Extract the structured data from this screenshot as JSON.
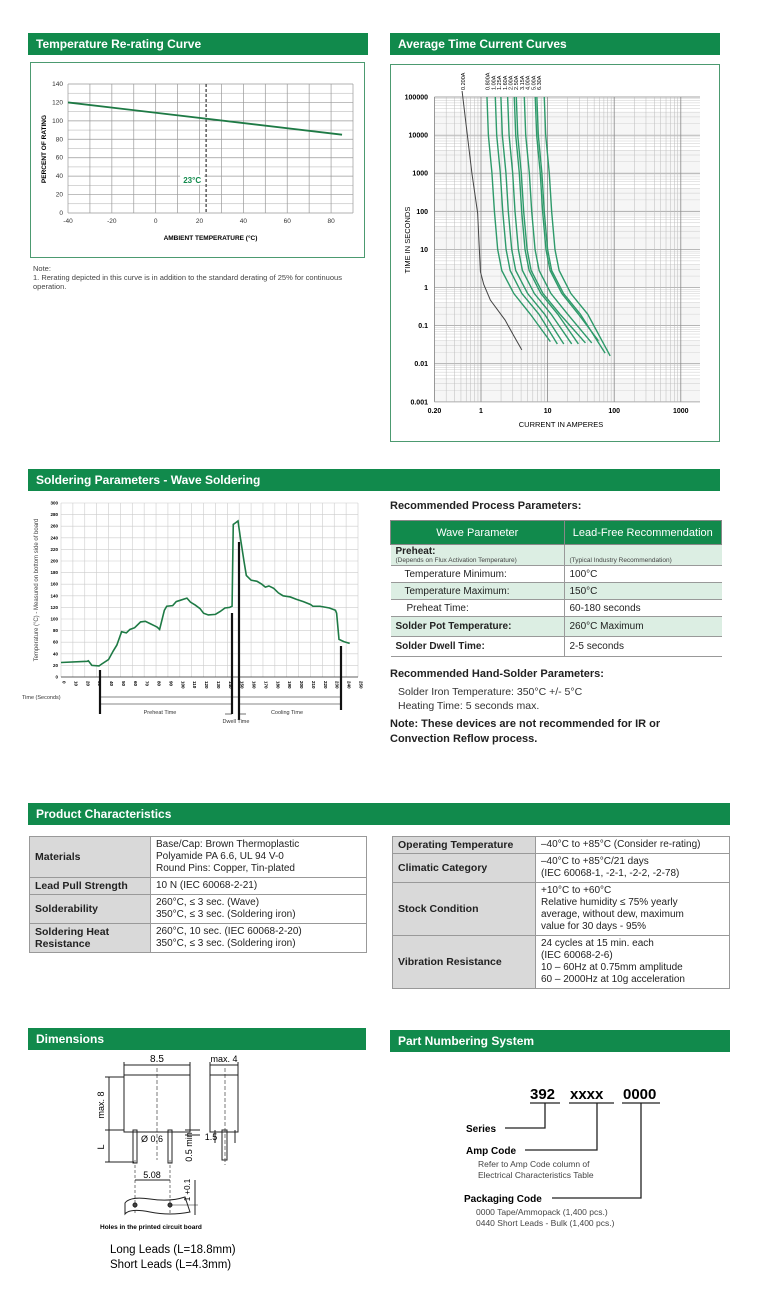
{
  "sections": {
    "rerating": "Temperature Re-rating Curve",
    "tcc": "Average Time Current Curves",
    "soldering": "Soldering Parameters - Wave Soldering",
    "product": "Product Characteristics",
    "dimensions": "Dimensions",
    "part_numbering": "Part Numbering System"
  },
  "colors": {
    "accent": "#118a4c",
    "curve": "#1e7a45",
    "tcc_curve": "#2e9a6a",
    "row_tint": "#dceee3",
    "label_cell": "#d9d9d9"
  },
  "rerating_note": {
    "title": "Note:",
    "text": "1. Rerating depicted in this curve is in addition to the standard derating of 25% for continuous operation."
  },
  "chart_data": [
    {
      "type": "line",
      "xlabel": "AMBIENT TEMPERATURE (°C)",
      "ylabel": "PERCENT OF RATING",
      "xlim": [
        -40,
        90
      ],
      "ylim": [
        0,
        140
      ],
      "xticks": [
        -40,
        -20,
        0,
        20,
        40,
        60,
        80
      ],
      "yticks": [
        0,
        20,
        40,
        60,
        80,
        100,
        120,
        140
      ],
      "grid": true,
      "x": [
        -40,
        85
      ],
      "y": [
        120,
        85
      ],
      "annotation": {
        "label": "23°C",
        "x": 23
      }
    },
    {
      "type": "line",
      "xlabel": "CURRENT IN AMPERES",
      "ylabel": "TIME IN SECONDS",
      "xscale": "log",
      "yscale": "log",
      "xlim": [
        0.2,
        2000
      ],
      "ylim": [
        0.001,
        100000
      ],
      "xticks": [
        "0.20",
        "1",
        "10",
        "100",
        "1000"
      ],
      "yticks": [
        "0.001",
        "0.01",
        "0.1",
        "1",
        "10",
        "100",
        "1000",
        "10000",
        "100000"
      ],
      "grid": true,
      "series": [
        {
          "name": "0.200A",
          "points": [
            [
              0.52,
              200000
            ],
            [
              0.73,
              1000
            ],
            [
              0.89,
              90
            ],
            [
              0.98,
              2.6
            ],
            [
              1.1,
              1.2
            ],
            [
              1.38,
              0.47
            ],
            [
              1.8,
              0.25
            ],
            [
              2.3,
              0.14
            ],
            [
              3,
              0.06
            ],
            [
              4.1,
              0.023
            ]
          ]
        },
        {
          "name": "0.800A",
          "points": [
            [
              1.23,
              100000
            ],
            [
              1.29,
              10000
            ],
            [
              1.46,
              1000
            ],
            [
              1.59,
              100
            ],
            [
              1.78,
              10
            ],
            [
              2.05,
              2.8
            ],
            [
              3.1,
              0.7
            ],
            [
              5.5,
              0.2
            ],
            [
              11,
              0.038
            ]
          ]
        },
        {
          "name": "1.00A",
          "points": [
            [
              1.64,
              100000
            ],
            [
              1.72,
              10000
            ],
            [
              1.95,
              1000
            ],
            [
              2.12,
              100
            ],
            [
              2.38,
              10
            ],
            [
              2.74,
              2.8
            ],
            [
              4.1,
              0.7
            ],
            [
              7.4,
              0.2
            ],
            [
              14,
              0.033
            ]
          ]
        },
        {
          "name": "1.25A",
          "points": [
            [
              1.99,
              100000
            ],
            [
              2.09,
              10000
            ],
            [
              2.37,
              1000
            ],
            [
              2.57,
              100
            ],
            [
              2.89,
              10
            ],
            [
              3.32,
              2.8
            ],
            [
              5.0,
              0.7
            ],
            [
              9.0,
              0.2
            ],
            [
              17.5,
              0.033
            ]
          ]
        },
        {
          "name": "1.60A",
          "points": [
            [
              2.51,
              100000
            ],
            [
              2.64,
              10000
            ],
            [
              2.99,
              1000
            ],
            [
              3.24,
              100
            ],
            [
              3.64,
              10
            ],
            [
              4.19,
              2.8
            ],
            [
              6.3,
              0.7
            ],
            [
              11.3,
              0.2
            ],
            [
              23,
              0.033
            ]
          ]
        },
        {
          "name": "2.00A",
          "points": [
            [
              3.16,
              100000
            ],
            [
              3.32,
              10000
            ],
            [
              3.76,
              1000
            ],
            [
              4.08,
              100
            ],
            [
              4.58,
              10
            ],
            [
              5.28,
              2.8
            ],
            [
              7.9,
              0.7
            ],
            [
              14.2,
              0.2
            ],
            [
              29,
              0.033
            ]
          ]
        },
        {
          "name": "2.50A",
          "points": [
            [
              3.39,
              100000
            ],
            [
              3.56,
              10000
            ],
            [
              4.03,
              1000
            ],
            [
              4.37,
              100
            ],
            [
              4.92,
              10
            ],
            [
              5.66,
              2.8
            ],
            [
              8.5,
              0.7
            ],
            [
              15.3,
              0.2
            ],
            [
              37,
              0.035
            ]
          ]
        },
        {
          "name": "3.15A",
          "points": [
            [
              4.47,
              100000
            ],
            [
              4.69,
              10000
            ],
            [
              5.32,
              1000
            ],
            [
              5.77,
              100
            ],
            [
              6.48,
              10
            ],
            [
              7.46,
              2.8
            ],
            [
              11.2,
              0.7
            ],
            [
              20,
              0.2
            ],
            [
              46,
              0.035
            ]
          ]
        },
        {
          "name": "4.00A",
          "points": [
            [
              6.52,
              100000
            ],
            [
              6.85,
              10000
            ],
            [
              7.76,
              1000
            ],
            [
              8.41,
              100
            ],
            [
              9.45,
              10
            ],
            [
              10.9,
              2.8
            ],
            [
              16.3,
              0.7
            ],
            [
              29,
              0.2
            ],
            [
              58,
              0.04
            ]
          ]
        },
        {
          "name": "5.00A",
          "points": [
            [
              6.9,
              100000
            ],
            [
              7.25,
              10000
            ],
            [
              8.21,
              1000
            ],
            [
              8.9,
              100
            ],
            [
              10,
              10
            ],
            [
              11.5,
              2.8
            ],
            [
              17.3,
              0.7
            ],
            [
              31,
              0.2
            ],
            [
              73,
              0.019
            ]
          ]
        },
        {
          "name": "6.30A",
          "points": [
            [
              8.91,
              100000
            ],
            [
              9.36,
              10000
            ],
            [
              10.6,
              1000
            ],
            [
              11.5,
              100
            ],
            [
              12.9,
              10
            ],
            [
              14.9,
              2.8
            ],
            [
              22.3,
              0.7
            ],
            [
              40,
              0.2
            ],
            [
              87,
              0.016
            ]
          ]
        }
      ]
    },
    {
      "type": "line",
      "xlabel": "Time (Seconds)",
      "ylabel": "Temperature (°C) - Measured on bottom side of board",
      "xlim": [
        0,
        250
      ],
      "ylim": [
        0,
        300
      ],
      "xticks": [
        0,
        10,
        20,
        30,
        40,
        50,
        60,
        70,
        80,
        90,
        100,
        110,
        120,
        130,
        140,
        150,
        160,
        170,
        180,
        190,
        200,
        210,
        220,
        230,
        240,
        250
      ],
      "yticks": [
        0,
        20,
        40,
        60,
        80,
        100,
        120,
        140,
        160,
        180,
        200,
        220,
        240,
        260,
        280,
        300
      ],
      "grid": true,
      "x": [
        0,
        22,
        23,
        26,
        32,
        34,
        40,
        44,
        47,
        51,
        55,
        58,
        62,
        67,
        71,
        75,
        79,
        81,
        83,
        87,
        89,
        94,
        97,
        100,
        106,
        109,
        113,
        117,
        120,
        124,
        130,
        134,
        138,
        142,
        144,
        145,
        147,
        149,
        151,
        154,
        156,
        160,
        165,
        169,
        172,
        175,
        179,
        183,
        187,
        193,
        198,
        204,
        210,
        212,
        218,
        226,
        231,
        232,
        234,
        238,
        243
      ],
      "y": [
        25,
        27,
        28,
        20,
        19,
        22,
        30,
        45,
        55,
        78,
        76,
        82,
        85,
        95,
        96,
        92,
        88,
        86,
        82,
        115,
        122,
        123,
        130,
        132,
        136,
        129,
        124,
        118,
        110,
        107,
        108,
        113,
        119,
        120,
        122,
        263,
        266,
        269,
        240,
        200,
        175,
        167,
        165,
        160,
        155,
        157,
        153,
        145,
        140,
        138,
        134,
        130,
        125,
        122,
        122,
        119,
        115,
        110,
        65,
        61,
        58
      ],
      "annotations": {
        "time_label": "Time (Seconds)",
        "preheat": "Preheat Time",
        "dwell": "Dwell Time",
        "cooling": "Cooling Time"
      }
    }
  ],
  "process": {
    "title": "Recommended Process Parameters:",
    "headers": [
      "Wave Parameter",
      "Lead-Free Recommendation"
    ],
    "preheat_label": "Preheat:",
    "preheat_sub": "(Depends on Flux Activation Temperature)",
    "preheat_rec": "(Typical Industry Recommendation)",
    "rows": [
      {
        "param": "Temperature Minimum:",
        "value": "100°C"
      },
      {
        "param": "Temperature Maximum:",
        "value": "150°C"
      },
      {
        "param": "Preheat Time:",
        "value": "60-180 seconds"
      },
      {
        "param": "Solder Pot Temperature:",
        "value": "260°C Maximum"
      },
      {
        "param": "Solder Dwell Time:",
        "value": "2-5 seconds"
      }
    ],
    "hand_title": "Recommended Hand-Solder Parameters:",
    "hand_lines": [
      "Solder Iron Temperature: 350°C +/- 5°C",
      "Heating Time: 5 seconds max."
    ],
    "note": "Note: These devices are not recommended for IR or Convection Reflow process."
  },
  "product_left": [
    {
      "label": "Materials",
      "lines": [
        "Base/Cap: Brown Thermoplastic",
        "Polyamide PA 6.6, UL 94 V-0",
        "Round Pins: Copper, Tin-plated"
      ]
    },
    {
      "label": "Lead Pull Strength",
      "lines": [
        "10 N (IEC  60068-2-21)"
      ]
    },
    {
      "label": "Solderability",
      "lines": [
        "260°C, ≤ 3 sec. (Wave)",
        "350°C, ≤ 3 sec. (Soldering iron)"
      ]
    },
    {
      "label": "Soldering Heat Resistance",
      "lines": [
        "260°C, 10 sec. (IEC  60068-2-20)",
        "350°C, ≤ 3 sec. (Soldering iron)"
      ]
    }
  ],
  "product_right": [
    {
      "label": "Operating Temperature",
      "lines": [
        "–40°C to +85°C (Consider re-rating)"
      ]
    },
    {
      "label": "Climatic Category",
      "lines": [
        "–40°C to +85°C/21 days",
        "(IEC 60068-1, -2-1, -2-2, -2-78)"
      ]
    },
    {
      "label": "Stock Condition",
      "lines": [
        "+10°C to +60°C",
        "Relative humidity ≤ 75% yearly",
        "average, without dew, maximum",
        "value for 30 days - 95%"
      ]
    },
    {
      "label": "Vibration Resistance",
      "lines": [
        "24 cycles at 15 min. each",
        "(IEC 60068-2-6)",
        "10 – 60Hz at 0.75mm amplitude",
        "60 – 2000Hz at 10g acceleration"
      ]
    }
  ],
  "dimensions": {
    "width": "8.5",
    "depth": "max. 4",
    "height": "max. 8",
    "lead_label": "L",
    "pin_dia": "Ø 0.6",
    "min_len": "0.5 min",
    "offset": "1.5",
    "pitch": "5.08",
    "hole": "1 +0.1",
    "pcb_caption": "Holes in the printed circuit board",
    "leads": [
      "Long Leads (L=18.8mm)",
      "Short Leads (L=4.3mm)"
    ]
  },
  "part_numbering": {
    "code": [
      "392",
      "xxxx",
      "0000"
    ],
    "series": "Series",
    "amp_code": "Amp Code",
    "amp_desc": [
      "Refer to Amp Code column of",
      "Electrical Characteristics Table"
    ],
    "packaging": "Packaging Code",
    "packaging_desc": [
      "0000 Tape/Ammopack (1,400 pcs.)",
      "0440 Short Leads - Bulk (1,400 pcs.)"
    ]
  }
}
